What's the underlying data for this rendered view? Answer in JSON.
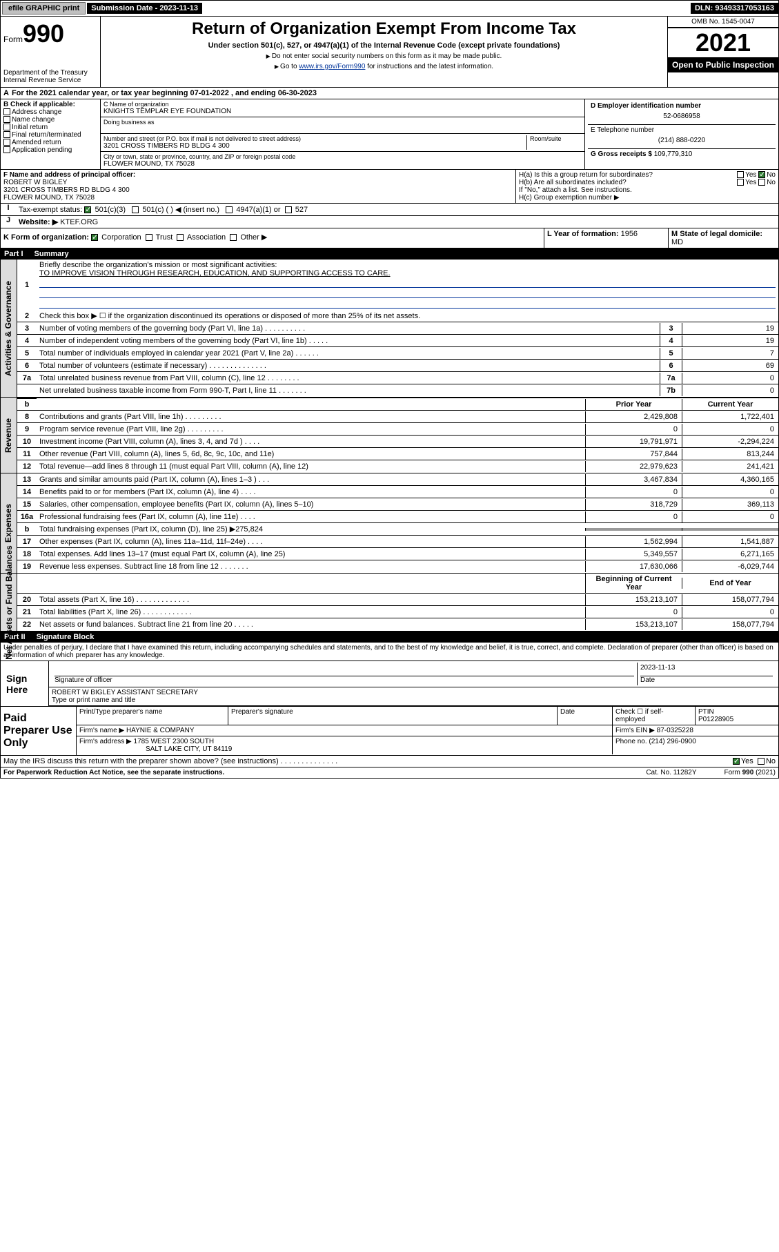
{
  "topbar": {
    "efile": "efile GRAPHIC print",
    "submission_label": "Submission Date - 2023-11-13",
    "dln": "DLN: 93493317053163"
  },
  "header": {
    "form_word": "Form",
    "form_num": "990",
    "title": "Return of Organization Exempt From Income Tax",
    "subtitle": "Under section 501(c), 527, or 4947(a)(1) of the Internal Revenue Code (except private foundations)",
    "note1": "Do not enter social security numbers on this form as it may be made public.",
    "note2_pre": "Go to ",
    "note2_link": "www.irs.gov/Form990",
    "note2_post": " for instructions and the latest information.",
    "dept": "Department of the Treasury",
    "irs": "Internal Revenue Service",
    "omb": "OMB No. 1545-0047",
    "year": "2021",
    "inspection": "Open to Public Inspection"
  },
  "periodA": "For the 2021 calendar year, or tax year beginning 07-01-2022  , and ending 06-30-2023",
  "boxB": {
    "label": "B Check if applicable:",
    "opts": [
      "Address change",
      "Name change",
      "Initial return",
      "Final return/terminated",
      "Amended return",
      "Application pending"
    ]
  },
  "boxC": {
    "name_label": "C Name of organization",
    "name": "KNIGHTS TEMPLAR EYE FOUNDATION",
    "dba_label": "Doing business as",
    "addr_label": "Number and street (or P.O. box if mail is not delivered to street address)",
    "addr": "3201 CROSS TIMBERS RD BLDG 4 300",
    "room_label": "Room/suite",
    "city_label": "City or town, state or province, country, and ZIP or foreign postal code",
    "city": "FLOWER MOUND, TX  75028"
  },
  "boxD": {
    "label": "D Employer identification number",
    "val": "52-0686958"
  },
  "boxE": {
    "label": "E Telephone number",
    "val": "(214) 888-0220"
  },
  "boxG": {
    "label": "G Gross receipts $",
    "val": "109,779,310"
  },
  "boxF": {
    "label": "F Name and address of principal officer:",
    "name": "ROBERT W BIGLEY",
    "addr": "3201 CROSS TIMBERS RD BLDG 4 300",
    "city": "FLOWER MOUND, TX  75028"
  },
  "boxH": {
    "a_label": "H(a)  Is this a group return for subordinates?",
    "b_label": "H(b)  Are all subordinates included?",
    "b_note": "If \"No,\" attach a list. See instructions.",
    "c_label": "H(c)  Group exemption number ▶",
    "yes": "Yes",
    "no": "No"
  },
  "boxI": {
    "label": "Tax-exempt status:",
    "c3": "501(c)(3)",
    "c": "501(c) (  ) ◀ (insert no.)",
    "a1": "4947(a)(1) or",
    "s527": "527"
  },
  "boxJ": {
    "label": "Website: ▶",
    "val": "KTEF.ORG"
  },
  "boxK": {
    "label": "K Form of organization:",
    "corp": "Corporation",
    "trust": "Trust",
    "assoc": "Association",
    "other": "Other ▶"
  },
  "boxL": {
    "label": "L Year of formation:",
    "val": "1956"
  },
  "boxM": {
    "label": "M State of legal domicile:",
    "val": "MD"
  },
  "part1": {
    "num": "Part I",
    "title": "Summary"
  },
  "mission": {
    "label": "Briefly describe the organization's mission or most significant activities:",
    "text": "TO IMPROVE VISION THROUGH RESEARCH, EDUCATION, AND SUPPORTING ACCESS TO CARE."
  },
  "line2": "Check this box ▶ ☐  if the organization discontinued its operations or disposed of more than 25% of its net assets.",
  "govLines": [
    {
      "n": "3",
      "d": "Number of voting members of the governing body (Part VI, line 1a)  .  .  .  .  .  .  .  .  .  .",
      "b": "3",
      "v": "19"
    },
    {
      "n": "4",
      "d": "Number of independent voting members of the governing body (Part VI, line 1b)  .  .  .  .  .",
      "b": "4",
      "v": "19"
    },
    {
      "n": "5",
      "d": "Total number of individuals employed in calendar year 2021 (Part V, line 2a)  .  .  .  .  .  .",
      "b": "5",
      "v": "7"
    },
    {
      "n": "6",
      "d": "Total number of volunteers (estimate if necessary)  .  .  .  .  .  .  .  .  .  .  .  .  .  .",
      "b": "6",
      "v": "69"
    },
    {
      "n": "7a",
      "d": "Total unrelated business revenue from Part VIII, column (C), line 12  .  .  .  .  .  .  .  .",
      "b": "7a",
      "v": "0"
    },
    {
      "n": "",
      "d": "Net unrelated business taxable income from Form 990-T, Part I, line 11  .  .  .  .  .  .  .",
      "b": "7b",
      "v": "0"
    }
  ],
  "colHdr": {
    "prior": "Prior Year",
    "current": "Current Year"
  },
  "revLines": [
    {
      "n": "8",
      "d": "Contributions and grants (Part VIII, line 1h)  .  .  .  .  .  .  .  .  .",
      "p": "2,429,808",
      "c": "1,722,401"
    },
    {
      "n": "9",
      "d": "Program service revenue (Part VIII, line 2g)  .  .  .  .  .  .  .  .  .",
      "p": "0",
      "c": "0"
    },
    {
      "n": "10",
      "d": "Investment income (Part VIII, column (A), lines 3, 4, and 7d )  .  .  .  .",
      "p": "19,791,971",
      "c": "-2,294,224"
    },
    {
      "n": "11",
      "d": "Other revenue (Part VIII, column (A), lines 5, 6d, 8c, 9c, 10c, and 11e)",
      "p": "757,844",
      "c": "813,244"
    },
    {
      "n": "12",
      "d": "Total revenue—add lines 8 through 11 (must equal Part VIII, column (A), line 12)",
      "p": "22,979,623",
      "c": "241,421"
    }
  ],
  "expLines": [
    {
      "n": "13",
      "d": "Grants and similar amounts paid (Part IX, column (A), lines 1–3 )  .  .  .",
      "p": "3,467,834",
      "c": "4,360,165"
    },
    {
      "n": "14",
      "d": "Benefits paid to or for members (Part IX, column (A), line 4)  .  .  .  .",
      "p": "0",
      "c": "0"
    },
    {
      "n": "15",
      "d": "Salaries, other compensation, employee benefits (Part IX, column (A), lines 5–10)",
      "p": "318,729",
      "c": "369,113"
    },
    {
      "n": "16a",
      "d": "Professional fundraising fees (Part IX, column (A), line 11e)  .  .  .  .",
      "p": "0",
      "c": "0"
    },
    {
      "n": "b",
      "d": "Total fundraising expenses (Part IX, column (D), line 25) ▶275,824",
      "p": "",
      "c": "",
      "shade": true
    },
    {
      "n": "17",
      "d": "Other expenses (Part IX, column (A), lines 11a–11d, 11f–24e)  .  .  .  .",
      "p": "1,562,994",
      "c": "1,541,887"
    },
    {
      "n": "18",
      "d": "Total expenses. Add lines 13–17 (must equal Part IX, column (A), line 25)",
      "p": "5,349,557",
      "c": "6,271,165"
    },
    {
      "n": "19",
      "d": "Revenue less expenses. Subtract line 18 from line 12  .  .  .  .  .  .  .",
      "p": "17,630,066",
      "c": "-6,029,744"
    }
  ],
  "netHdr": {
    "prior": "Beginning of Current Year",
    "current": "End of Year"
  },
  "netLines": [
    {
      "n": "20",
      "d": "Total assets (Part X, line 16)  .  .  .  .  .  .  .  .  .  .  .  .  .",
      "p": "153,213,107",
      "c": "158,077,794"
    },
    {
      "n": "21",
      "d": "Total liabilities (Part X, line 26)  .  .  .  .  .  .  .  .  .  .  .  .",
      "p": "0",
      "c": "0"
    },
    {
      "n": "22",
      "d": "Net assets or fund balances. Subtract line 21 from line 20  .  .  .  .  .",
      "p": "153,213,107",
      "c": "158,077,794"
    }
  ],
  "part2": {
    "num": "Part II",
    "title": "Signature Block"
  },
  "penalties": "Under penalties of perjury, I declare that I have examined this return, including accompanying schedules and statements, and to the best of my knowledge and belief, it is true, correct, and complete. Declaration of preparer (other than officer) is based on all information of which preparer has any knowledge.",
  "sign": {
    "here": "Sign Here",
    "sig_label": "Signature of officer",
    "date_label": "Date",
    "date": "2023-11-13",
    "name": "ROBERT W BIGLEY  ASSISTANT SECRETARY",
    "name_label": "Type or print name and title"
  },
  "prep": {
    "title": "Paid Preparer Use Only",
    "name_label": "Print/Type preparer's name",
    "sig_label": "Preparer's signature",
    "date_label": "Date",
    "check_label": "Check ☐ if self-employed",
    "ptin_label": "PTIN",
    "ptin": "P01228905",
    "firm_label": "Firm's name    ▶",
    "firm": "HAYNIE & COMPANY",
    "ein_label": "Firm's EIN ▶",
    "ein": "87-0325228",
    "addr_label": "Firm's address ▶",
    "addr1": "1785 WEST 2300 SOUTH",
    "addr2": "SALT LAKE CITY, UT  84119",
    "phone_label": "Phone no.",
    "phone": "(214) 296-0900"
  },
  "discuss": {
    "q": "May the IRS discuss this return with the preparer shown above? (see instructions)  .  .  .  .  .  .  .  .  .  .  .  .  .  .",
    "yes": "Yes",
    "no": "No"
  },
  "footer": {
    "notice": "For Paperwork Reduction Act Notice, see the separate instructions.",
    "cat": "Cat. No. 11282Y",
    "form": "Form 990 (2021)"
  },
  "vtabs": {
    "gov": "Activities & Governance",
    "rev": "Revenue",
    "exp": "Expenses",
    "net": "Net Assets or Fund Balances"
  }
}
